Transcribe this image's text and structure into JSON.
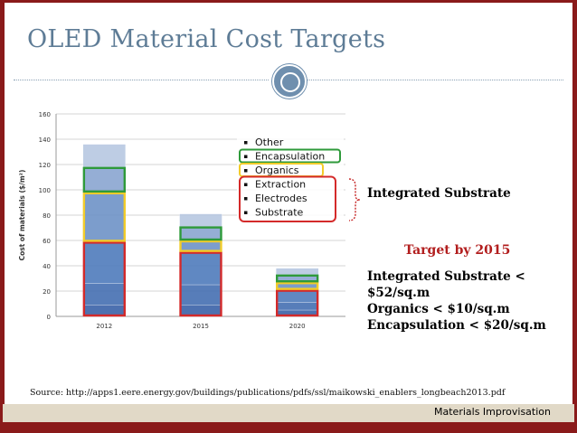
{
  "slide": {
    "title": "OLED Material Cost Targets",
    "integrated_label": "Integrated Substrate",
    "target_heading": "Target by 2015",
    "targets": [
      "Integrated Substrate <",
      "$52/sq.m",
      "Organics < $10/sq.m",
      "Encapsulation < $20/sq.m"
    ],
    "source": "Source: http://apps1.eere.energy.gov/buildings/publications/pdfs/ssl/maikowski_enablers_longbeach2013.pdf",
    "footer": "Materials Improvisation"
  },
  "colors": {
    "frame": "#8a1a1a",
    "title": "#5e7c96",
    "target_heading": "#b21e1e",
    "footer_band": "#e1d9c7"
  },
  "chart_data": {
    "type": "bar",
    "stacked": true,
    "categories": [
      "2012",
      "2015",
      "2020"
    ],
    "ylabel": "Cost of materials ($/m²)",
    "ylim": [
      0,
      160
    ],
    "yticks": [
      0,
      20,
      40,
      60,
      80,
      100,
      120,
      140,
      160
    ],
    "grid": true,
    "legend_position": "top-right",
    "series": [
      {
        "name": "Substrate",
        "values": [
          9,
          9,
          5
        ],
        "color": "#3a62a8"
      },
      {
        "name": "Electrodes",
        "values": [
          17,
          16,
          6
        ],
        "color": "#4570b2"
      },
      {
        "name": "Extraction",
        "values": [
          33,
          26,
          10
        ],
        "color": "#4f7cbc"
      },
      {
        "name": "Organics",
        "values": [
          39,
          9,
          6
        ],
        "color": "#6e93c7"
      },
      {
        "name": "Encapsulation",
        "values": [
          20,
          11,
          6
        ],
        "color": "#8aa6d1"
      },
      {
        "name": "Other",
        "values": [
          18,
          10,
          5
        ],
        "color": "#b7c8e2"
      }
    ],
    "group_outlines": [
      {
        "label": "Encapsulation",
        "color": "#2e9a3a"
      },
      {
        "label": "Organics",
        "color": "#f2cc2a"
      },
      {
        "label": "Extraction + Electrodes + Substrate",
        "color": "#d42a2a"
      }
    ]
  }
}
